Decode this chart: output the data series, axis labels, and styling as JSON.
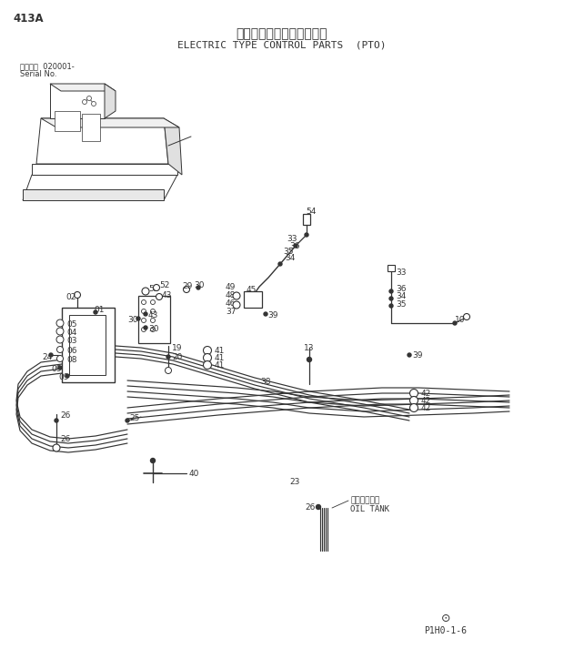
{
  "title_jp": "電気式操作用品（ＰＴＯ）",
  "title_en": "ELECTRIC TYPE CONTROL PARTS  (PTO)",
  "page_id": "413A",
  "serial_line1": "通用号機  020001-",
  "serial_line2": "Serial No.",
  "footer_sym": "©",
  "footer_code": "P1H0-1-6",
  "bg_color": "#ffffff",
  "lc": "#333333",
  "tc": "#333333"
}
